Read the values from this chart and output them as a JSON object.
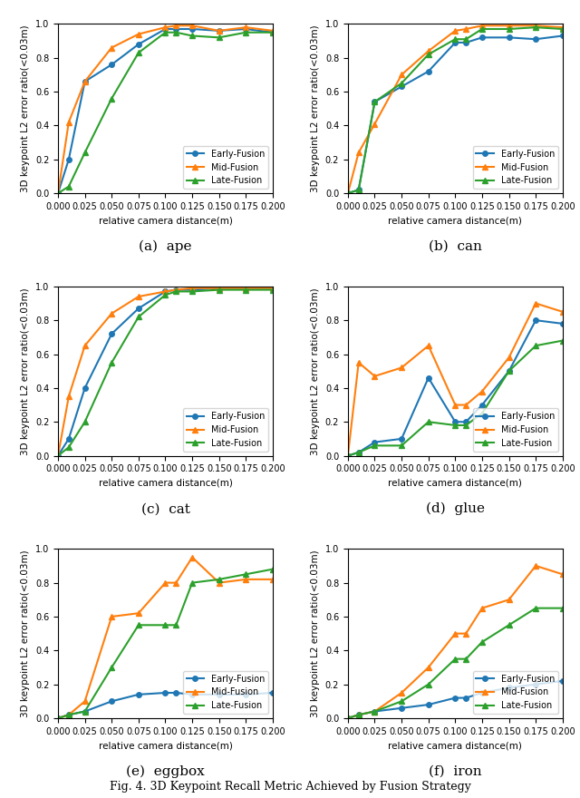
{
  "x": [
    0.0,
    0.01,
    0.025,
    0.05,
    0.075,
    0.1,
    0.11,
    0.125,
    0.15,
    0.175,
    0.2
  ],
  "subplots": [
    {
      "title": "(a)  ape",
      "early": [
        0.0,
        0.2,
        0.66,
        0.76,
        0.88,
        0.97,
        0.97,
        0.97,
        0.96,
        0.97,
        0.95
      ],
      "mid": [
        0.0,
        0.42,
        0.66,
        0.86,
        0.94,
        0.98,
        0.99,
        0.99,
        0.96,
        0.98,
        0.96
      ],
      "late": [
        0.0,
        0.04,
        0.24,
        0.56,
        0.83,
        0.95,
        0.95,
        0.93,
        0.92,
        0.95,
        0.95
      ]
    },
    {
      "title": "(b)  can",
      "early": [
        0.0,
        0.02,
        0.54,
        0.63,
        0.72,
        0.89,
        0.89,
        0.92,
        0.92,
        0.91,
        0.93
      ],
      "mid": [
        0.0,
        0.24,
        0.41,
        0.7,
        0.84,
        0.96,
        0.97,
        0.99,
        0.99,
        0.99,
        0.98
      ],
      "late": [
        0.0,
        0.02,
        0.54,
        0.65,
        0.82,
        0.91,
        0.91,
        0.97,
        0.97,
        0.98,
        0.97
      ]
    },
    {
      "title": "(c)  cat",
      "early": [
        0.0,
        0.1,
        0.4,
        0.72,
        0.87,
        0.97,
        0.98,
        0.98,
        0.99,
        0.99,
        0.99
      ],
      "mid": [
        0.0,
        0.35,
        0.65,
        0.84,
        0.94,
        0.97,
        0.98,
        0.99,
        0.99,
        0.99,
        0.99
      ],
      "late": [
        0.0,
        0.05,
        0.2,
        0.55,
        0.82,
        0.95,
        0.97,
        0.97,
        0.98,
        0.98,
        0.98
      ]
    },
    {
      "title": "(d)  glue",
      "early": [
        0.0,
        0.02,
        0.08,
        0.1,
        0.46,
        0.2,
        0.2,
        0.3,
        0.5,
        0.8,
        0.78
      ],
      "mid": [
        0.0,
        0.55,
        0.47,
        0.52,
        0.65,
        0.3,
        0.3,
        0.38,
        0.58,
        0.9,
        0.85
      ],
      "late": [
        0.0,
        0.02,
        0.06,
        0.06,
        0.2,
        0.18,
        0.18,
        0.25,
        0.5,
        0.65,
        0.68
      ]
    },
    {
      "title": "(e)  eggbox",
      "early": [
        0.0,
        0.02,
        0.04,
        0.1,
        0.14,
        0.15,
        0.15,
        0.14,
        0.14,
        0.14,
        0.15
      ],
      "mid": [
        0.0,
        0.02,
        0.1,
        0.6,
        0.62,
        0.8,
        0.8,
        0.95,
        0.8,
        0.82,
        0.82
      ],
      "late": [
        0.0,
        0.02,
        0.04,
        0.3,
        0.55,
        0.55,
        0.55,
        0.8,
        0.82,
        0.85,
        0.88
      ]
    },
    {
      "title": "(f)  iron",
      "early": [
        0.0,
        0.02,
        0.04,
        0.06,
        0.08,
        0.12,
        0.12,
        0.15,
        0.18,
        0.2,
        0.22
      ],
      "mid": [
        0.0,
        0.02,
        0.04,
        0.15,
        0.3,
        0.5,
        0.5,
        0.65,
        0.7,
        0.9,
        0.85
      ],
      "late": [
        0.0,
        0.02,
        0.04,
        0.1,
        0.2,
        0.35,
        0.35,
        0.45,
        0.55,
        0.65,
        0.65
      ]
    }
  ],
  "early_color": "#1f77b4",
  "mid_color": "#ff7f0e",
  "late_color": "#2ca02c",
  "xlabel": "relative camera distance(m)",
  "ylabel": "3D keypoint L2 error ratio(<0.03m)",
  "xlim": [
    0.0,
    0.2
  ],
  "ylim": [
    0.0,
    1.0
  ],
  "xticks": [
    0.0,
    0.025,
    0.05,
    0.075,
    0.1,
    0.125,
    0.15,
    0.175,
    0.2
  ],
  "yticks": [
    0.0,
    0.2,
    0.4,
    0.6,
    0.8,
    1.0
  ],
  "legend_labels": [
    "Early-Fusion",
    "Mid-Fusion",
    "Late-Fusion"
  ]
}
